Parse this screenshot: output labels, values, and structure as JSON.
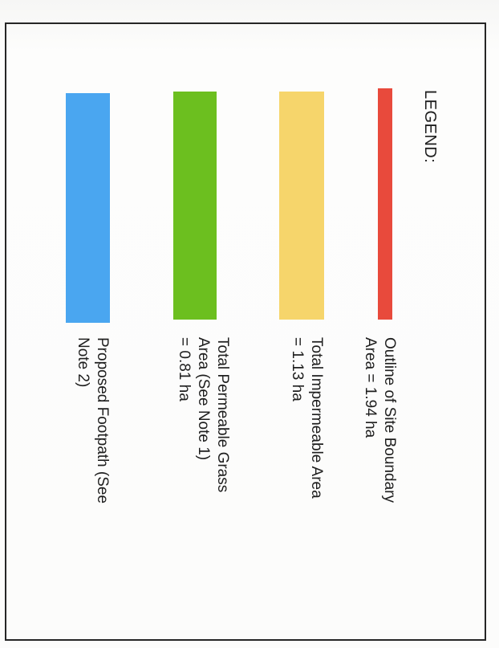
{
  "legend": {
    "heading": "LEGEND:",
    "items": [
      {
        "color": "#e84a3c",
        "lines": [
          "Outline of Site Boundary",
          "Area = 1.94 ha"
        ]
      },
      {
        "color": "#f6d56b",
        "lines": [
          "Total Impermeable Area",
          "= 1.13 ha"
        ]
      },
      {
        "color": "#6cbf1f",
        "lines": [
          "Total Permeable Grass",
          "Area (See Note 1)",
          "= 0.81 ha"
        ]
      },
      {
        "color": "#4aa6f0",
        "lines": [
          "Proposed Footpath (See",
          "Note 2)"
        ]
      }
    ]
  }
}
